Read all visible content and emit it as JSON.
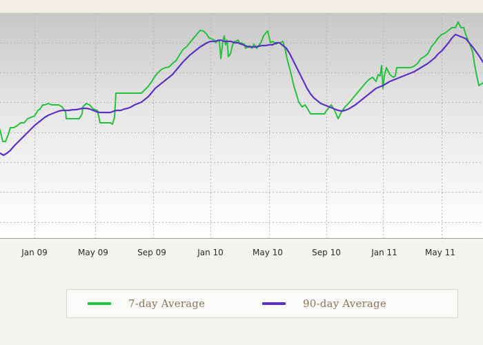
{
  "chart_data": {
    "type": "line",
    "x_tick_labels": [
      "Jan 09",
      "May 09",
      "Sep 09",
      "Jan 10",
      "May 10",
      "Sep 10",
      "Jan 11",
      "May 11"
    ],
    "grid": true,
    "legend_placement": "bottom",
    "series": [
      {
        "name": "7-day Average",
        "color": "#22c23a",
        "values": [
          [
            0,
            188
          ],
          [
            4,
            205
          ],
          [
            8,
            205
          ],
          [
            12,
            195
          ],
          [
            15,
            185
          ],
          [
            20,
            185
          ],
          [
            25,
            182
          ],
          [
            30,
            178
          ],
          [
            35,
            178
          ],
          [
            40,
            172
          ],
          [
            45,
            170
          ],
          [
            50,
            168
          ],
          [
            55,
            160
          ],
          [
            58,
            158
          ],
          [
            62,
            152
          ],
          [
            65,
            152
          ],
          [
            70,
            150
          ],
          [
            75,
            152
          ],
          [
            80,
            152
          ],
          [
            85,
            152
          ],
          [
            90,
            155
          ],
          [
            95,
            162
          ],
          [
            96,
            172
          ],
          [
            100,
            172
          ],
          [
            105,
            172
          ],
          [
            110,
            172
          ],
          [
            115,
            172
          ],
          [
            119,
            165
          ],
          [
            120,
            155
          ],
          [
            125,
            150
          ],
          [
            130,
            152
          ],
          [
            135,
            158
          ],
          [
            141,
            160
          ],
          [
            143,
            168
          ],
          [
            145,
            178
          ],
          [
            150,
            178
          ],
          [
            155,
            178
          ],
          [
            160,
            178
          ],
          [
            163,
            180
          ],
          [
            166,
            170
          ],
          [
            168,
            135
          ],
          [
            175,
            135
          ],
          [
            180,
            135
          ],
          [
            185,
            135
          ],
          [
            190,
            135
          ],
          [
            195,
            135
          ],
          [
            200,
            135
          ],
          [
            205,
            135
          ],
          [
            210,
            130
          ],
          [
            215,
            125
          ],
          [
            220,
            118
          ],
          [
            225,
            110
          ],
          [
            230,
            104
          ],
          [
            235,
            100
          ],
          [
            240,
            98
          ],
          [
            245,
            97
          ],
          [
            250,
            92
          ],
          [
            255,
            88
          ],
          [
            260,
            80
          ],
          [
            265,
            72
          ],
          [
            270,
            68
          ],
          [
            275,
            62
          ],
          [
            280,
            56
          ],
          [
            285,
            50
          ],
          [
            290,
            44
          ],
          [
            295,
            45
          ],
          [
            298,
            48
          ],
          [
            300,
            50
          ],
          [
            303,
            55
          ],
          [
            306,
            56
          ],
          [
            310,
            58
          ],
          [
            313,
            62
          ],
          [
            316,
            58
          ],
          [
            318,
            60
          ],
          [
            320,
            85
          ],
          [
            323,
            60
          ],
          [
            325,
            52
          ],
          [
            327,
            65
          ],
          [
            329,
            58
          ],
          [
            331,
            82
          ],
          [
            334,
            78
          ],
          [
            337,
            65
          ],
          [
            340,
            60
          ],
          [
            342,
            60
          ],
          [
            345,
            58
          ],
          [
            348,
            64
          ],
          [
            350,
            62
          ],
          [
            354,
            64
          ],
          [
            356,
            70
          ],
          [
            359,
            68
          ],
          [
            362,
            66
          ],
          [
            365,
            70
          ],
          [
            368,
            64
          ],
          [
            372,
            70
          ],
          [
            375,
            66
          ],
          [
            378,
            62
          ],
          [
            382,
            52
          ],
          [
            385,
            48
          ],
          [
            388,
            45
          ],
          [
            392,
            62
          ],
          [
            395,
            60
          ],
          [
            398,
            62
          ],
          [
            400,
            64
          ],
          [
            403,
            62
          ],
          [
            406,
            62
          ],
          [
            410,
            60
          ],
          [
            413,
            70
          ],
          [
            416,
            85
          ],
          [
            420,
            100
          ],
          [
            423,
            112
          ],
          [
            426,
            125
          ],
          [
            430,
            138
          ],
          [
            433,
            148
          ],
          [
            438,
            155
          ],
          [
            442,
            152
          ],
          [
            446,
            158
          ],
          [
            450,
            165
          ],
          [
            455,
            165
          ],
          [
            460,
            165
          ],
          [
            465,
            165
          ],
          [
            470,
            165
          ],
          [
            475,
            158
          ],
          [
            480,
            152
          ],
          [
            485,
            160
          ],
          [
            490,
            172
          ],
          [
            495,
            162
          ],
          [
            500,
            155
          ],
          [
            505,
            150
          ],
          [
            510,
            144
          ],
          [
            515,
            138
          ],
          [
            520,
            132
          ],
          [
            525,
            126
          ],
          [
            530,
            120
          ],
          [
            535,
            115
          ],
          [
            540,
            112
          ],
          [
            545,
            118
          ],
          [
            548,
            108
          ],
          [
            551,
            110
          ],
          [
            553,
            95
          ],
          [
            555,
            128
          ],
          [
            557,
            110
          ],
          [
            560,
            98
          ],
          [
            565,
            108
          ],
          [
            570,
            112
          ],
          [
            573,
            110
          ],
          [
            575,
            98
          ],
          [
            580,
            98
          ],
          [
            585,
            98
          ],
          [
            590,
            98
          ],
          [
            595,
            98
          ],
          [
            600,
            96
          ],
          [
            605,
            92
          ],
          [
            610,
            85
          ],
          [
            615,
            82
          ],
          [
            620,
            78
          ],
          [
            625,
            68
          ],
          [
            630,
            62
          ],
          [
            635,
            55
          ],
          [
            640,
            50
          ],
          [
            645,
            48
          ],
          [
            650,
            44
          ],
          [
            655,
            40
          ],
          [
            660,
            40
          ],
          [
            664,
            32
          ],
          [
            668,
            40
          ],
          [
            672,
            40
          ],
          [
            675,
            50
          ],
          [
            680,
            62
          ],
          [
            685,
            75
          ],
          [
            688,
            95
          ],
          [
            691,
            110
          ],
          [
            694,
            124
          ],
          [
            700,
            120
          ]
        ]
      },
      {
        "name": "90-day Average",
        "color": "#5b30c4",
        "values": [
          [
            0,
            222
          ],
          [
            5,
            225
          ],
          [
            10,
            222
          ],
          [
            15,
            218
          ],
          [
            20,
            212
          ],
          [
            25,
            207
          ],
          [
            30,
            202
          ],
          [
            35,
            197
          ],
          [
            40,
            192
          ],
          [
            45,
            187
          ],
          [
            50,
            182
          ],
          [
            55,
            178
          ],
          [
            60,
            174
          ],
          [
            65,
            170
          ],
          [
            70,
            167
          ],
          [
            75,
            165
          ],
          [
            80,
            163
          ],
          [
            85,
            161
          ],
          [
            90,
            160
          ],
          [
            95,
            160
          ],
          [
            100,
            160
          ],
          [
            105,
            159
          ],
          [
            110,
            159
          ],
          [
            115,
            158
          ],
          [
            120,
            157
          ],
          [
            125,
            157
          ],
          [
            130,
            158
          ],
          [
            135,
            160
          ],
          [
            140,
            162
          ],
          [
            145,
            163
          ],
          [
            150,
            163
          ],
          [
            155,
            163
          ],
          [
            160,
            163
          ],
          [
            165,
            161
          ],
          [
            170,
            160
          ],
          [
            175,
            160
          ],
          [
            180,
            158
          ],
          [
            185,
            157
          ],
          [
            190,
            155
          ],
          [
            195,
            152
          ],
          [
            200,
            150
          ],
          [
            205,
            148
          ],
          [
            210,
            144
          ],
          [
            215,
            140
          ],
          [
            220,
            134
          ],
          [
            225,
            128
          ],
          [
            230,
            124
          ],
          [
            235,
            120
          ],
          [
            240,
            116
          ],
          [
            245,
            112
          ],
          [
            250,
            108
          ],
          [
            255,
            102
          ],
          [
            260,
            96
          ],
          [
            265,
            90
          ],
          [
            270,
            85
          ],
          [
            275,
            80
          ],
          [
            280,
            76
          ],
          [
            285,
            72
          ],
          [
            290,
            68
          ],
          [
            295,
            65
          ],
          [
            300,
            62
          ],
          [
            305,
            60
          ],
          [
            310,
            60
          ],
          [
            315,
            59
          ],
          [
            320,
            58
          ],
          [
            325,
            60
          ],
          [
            330,
            60
          ],
          [
            335,
            60
          ],
          [
            340,
            62
          ],
          [
            345,
            62
          ],
          [
            350,
            64
          ],
          [
            355,
            66
          ],
          [
            360,
            68
          ],
          [
            365,
            68
          ],
          [
            370,
            68
          ],
          [
            375,
            67
          ],
          [
            380,
            66
          ],
          [
            385,
            66
          ],
          [
            390,
            65
          ],
          [
            395,
            65
          ],
          [
            400,
            62
          ],
          [
            405,
            62
          ],
          [
            410,
            66
          ],
          [
            415,
            70
          ],
          [
            420,
            78
          ],
          [
            425,
            88
          ],
          [
            430,
            98
          ],
          [
            435,
            108
          ],
          [
            440,
            118
          ],
          [
            445,
            128
          ],
          [
            450,
            136
          ],
          [
            455,
            142
          ],
          [
            460,
            146
          ],
          [
            465,
            150
          ],
          [
            470,
            152
          ],
          [
            475,
            154
          ],
          [
            480,
            156
          ],
          [
            485,
            158
          ],
          [
            490,
            160
          ],
          [
            495,
            161
          ],
          [
            500,
            160
          ],
          [
            505,
            158
          ],
          [
            510,
            155
          ],
          [
            515,
            152
          ],
          [
            520,
            148
          ],
          [
            525,
            144
          ],
          [
            530,
            140
          ],
          [
            535,
            136
          ],
          [
            540,
            132
          ],
          [
            545,
            128
          ],
          [
            550,
            126
          ],
          [
            555,
            124
          ],
          [
            560,
            121
          ],
          [
            565,
            118
          ],
          [
            570,
            116
          ],
          [
            575,
            114
          ],
          [
            580,
            112
          ],
          [
            585,
            110
          ],
          [
            590,
            108
          ],
          [
            595,
            106
          ],
          [
            600,
            104
          ],
          [
            605,
            101
          ],
          [
            610,
            98
          ],
          [
            615,
            95
          ],
          [
            620,
            92
          ],
          [
            625,
            88
          ],
          [
            630,
            84
          ],
          [
            635,
            78
          ],
          [
            640,
            74
          ],
          [
            645,
            68
          ],
          [
            650,
            62
          ],
          [
            655,
            55
          ],
          [
            660,
            50
          ],
          [
            665,
            52
          ],
          [
            670,
            54
          ],
          [
            675,
            56
          ],
          [
            680,
            62
          ],
          [
            685,
            68
          ],
          [
            690,
            75
          ],
          [
            695,
            82
          ],
          [
            700,
            90
          ]
        ]
      }
    ]
  }
}
